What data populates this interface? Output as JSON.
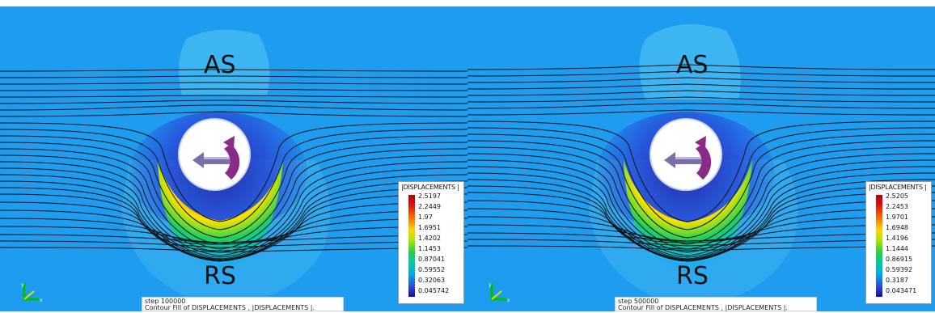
{
  "panels": [
    {
      "top_label": "AS",
      "bottom_label": "RS",
      "legend": {
        "title": "|DISPLACEMENTS |",
        "ticks": [
          "2.5197",
          "2.2449",
          "1.97",
          "1.6951",
          "1.4202",
          "1.1453",
          "0.87041",
          "0.59552",
          "0.32063",
          "0.045742"
        ]
      },
      "caption": {
        "line1": "step 100000",
        "line2": "Contour Fill of DISPLACEMENTS , |DISPLACEMENTS |."
      },
      "axis_labels": {
        "y": "y",
        "x": "x"
      }
    },
    {
      "top_label": "AS",
      "bottom_label": "RS",
      "legend": {
        "title": "|DISPLACEMENTS |",
        "ticks": [
          "2.5205",
          "2.2453",
          "1.9701",
          "1.6948",
          "1.4196",
          "1.1444",
          "0.86915",
          "0.59392",
          "0.3187",
          "0.043471"
        ]
      },
      "caption": {
        "line1": "step 500000",
        "line2": "Contour Fill of DISPLACEMENTS , |DISPLACEMENTS |."
      },
      "axis_labels": {
        "y": "y",
        "x": "x"
      }
    }
  ],
  "colors": {
    "background_field": "#1e9cf0",
    "streamline": "#111111",
    "tool": "#ffffff",
    "rotation_arrow": "#8a2b8a"
  }
}
